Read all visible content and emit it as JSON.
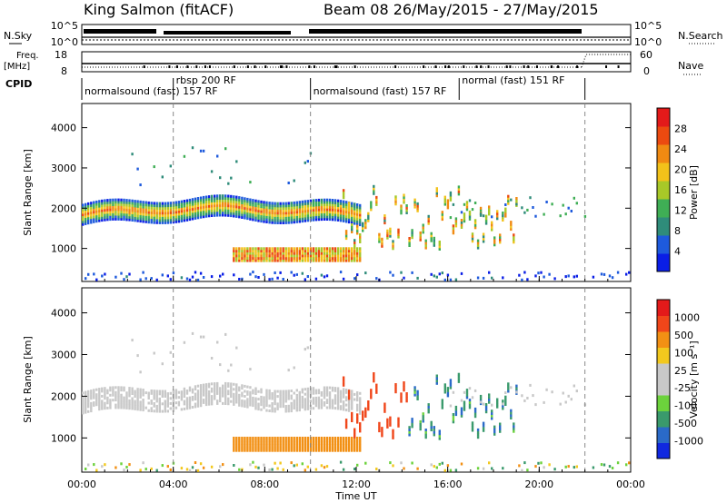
{
  "header": {
    "station": "King Salmon (fitACF)",
    "beam_date": "Beam 08  26/May/2015 - 27/May/2015"
  },
  "status_panels": {
    "nsky_label": "N.Sky",
    "nsearch_label": "N.Search",
    "count_ticks_left": [
      "10^5",
      "10^0"
    ],
    "count_ticks_right": [
      "10^5",
      "10^0"
    ],
    "freq_label_1": "Freq.",
    "freq_label_2": "[MHz]",
    "freq_ticks": [
      "18",
      "8"
    ],
    "nave_label": "Nave",
    "nave_ticks": [
      "60",
      "0"
    ],
    "cpid_label": "CPID",
    "cpid_segments": [
      {
        "label": "normalsound (fast) 157 RF",
        "start_h": 0.0,
        "end_h": 4.0,
        "row": 1
      },
      {
        "label": "rbsp 200 RF",
        "start_h": 4.0,
        "end_h": 10.0,
        "row": 0
      },
      {
        "label": "normalsound (fast) 157 RF",
        "start_h": 10.0,
        "end_h": 22.0,
        "row": 1
      },
      {
        "label": "normal (fast) 151 RF",
        "start_h": 16.5,
        "end_h": 22.0,
        "row": 0
      }
    ]
  },
  "power_panel": {
    "ylabel": "Slant Range [km]",
    "colorbar_label": "Power [dB]",
    "colorbar_ticks": [
      "28",
      "24",
      "20",
      "16",
      "12",
      "8",
      "4"
    ],
    "colors": [
      "#0a1ee6",
      "#1e5adc",
      "#2f8c7a",
      "#3fae55",
      "#a8c828",
      "#f2c21a",
      "#f08a12",
      "#ec4a10",
      "#e31a1a"
    ]
  },
  "velocity_panel": {
    "ylabel": "Slant Range [km]",
    "colorbar_label": "Velocity [m s⁻¹]",
    "colorbar_ticks": [
      "1000",
      "500",
      "100",
      "25",
      "-25",
      "-100",
      "-500",
      "-1000"
    ],
    "colors": [
      "#1028e0",
      "#2a6ac8",
      "#3a9a6c",
      "#6cd23c",
      "#c8c8c8",
      "#c8c8c8",
      "#f2c81e",
      "#f29014",
      "#f0461a",
      "#e31a1a"
    ]
  },
  "chart_data": [
    {
      "type": "heatmap",
      "title": "Power",
      "xlabel": "Time UT",
      "ylabel": "Slant Range [km]",
      "x_ticks": [
        "00:00",
        "04:00",
        "08:00",
        "12:00",
        "16:00",
        "20:00",
        "00:00"
      ],
      "xlim_hours": [
        0,
        24
      ],
      "y_ticks": [
        1000,
        2000,
        3000,
        4000
      ],
      "ylim_km": [
        180,
        4600
      ],
      "colorbar": {
        "label": "Power [dB]",
        "ticks": [
          4,
          8,
          12,
          16,
          20,
          24,
          28
        ]
      },
      "features": [
        {
          "name": "main band",
          "start_h": 0.0,
          "end_h": 12.0,
          "range_start_km": 1800,
          "range_end_km": 2200,
          "peak_db": 22
        },
        {
          "name": "upper echoes",
          "start_h": 2.0,
          "end_h": 10.0,
          "range_km": 3000,
          "peak_db": 10
        },
        {
          "name": "low band",
          "start_h": 6.5,
          "end_h": 12.0,
          "range_km": 900,
          "peak_db": 28
        },
        {
          "name": "afternoon structures",
          "start_h": 11.5,
          "end_h": 19.0,
          "range_start_km": 1000,
          "range_end_km": 2400,
          "peak_db": 26
        }
      ],
      "grid": false
    },
    {
      "type": "heatmap",
      "title": "Velocity",
      "xlabel": "Time UT",
      "ylabel": "Slant Range [km]",
      "x_ticks": [
        "00:00",
        "04:00",
        "08:00",
        "12:00",
        "16:00",
        "20:00",
        "00:00"
      ],
      "xlim_hours": [
        0,
        24
      ],
      "y_ticks": [
        1000,
        2000,
        3000,
        4000
      ],
      "ylim_km": [
        180,
        4600
      ],
      "colorbar": {
        "label": "Velocity [m s-1]",
        "ticks": [
          1000,
          500,
          100,
          25,
          -25,
          -100,
          -500,
          -1000
        ]
      },
      "features": [
        {
          "name": "main band",
          "start_h": 0.0,
          "end_h": 12.0,
          "range_km": 1850,
          "velocity_ms": 0
        },
        {
          "name": "low band",
          "start_h": 7.0,
          "end_h": 12.0,
          "range_km": 850,
          "velocity_ms": -150
        },
        {
          "name": "afternoon negative",
          "start_h": 11.0,
          "end_h": 14.5,
          "range_km": 1400,
          "velocity_ms": -700
        },
        {
          "name": "afternoon positive",
          "start_h": 14.0,
          "end_h": 17.0,
          "range_km": 1700,
          "velocity_ms": 300
        }
      ],
      "grid": false
    }
  ]
}
